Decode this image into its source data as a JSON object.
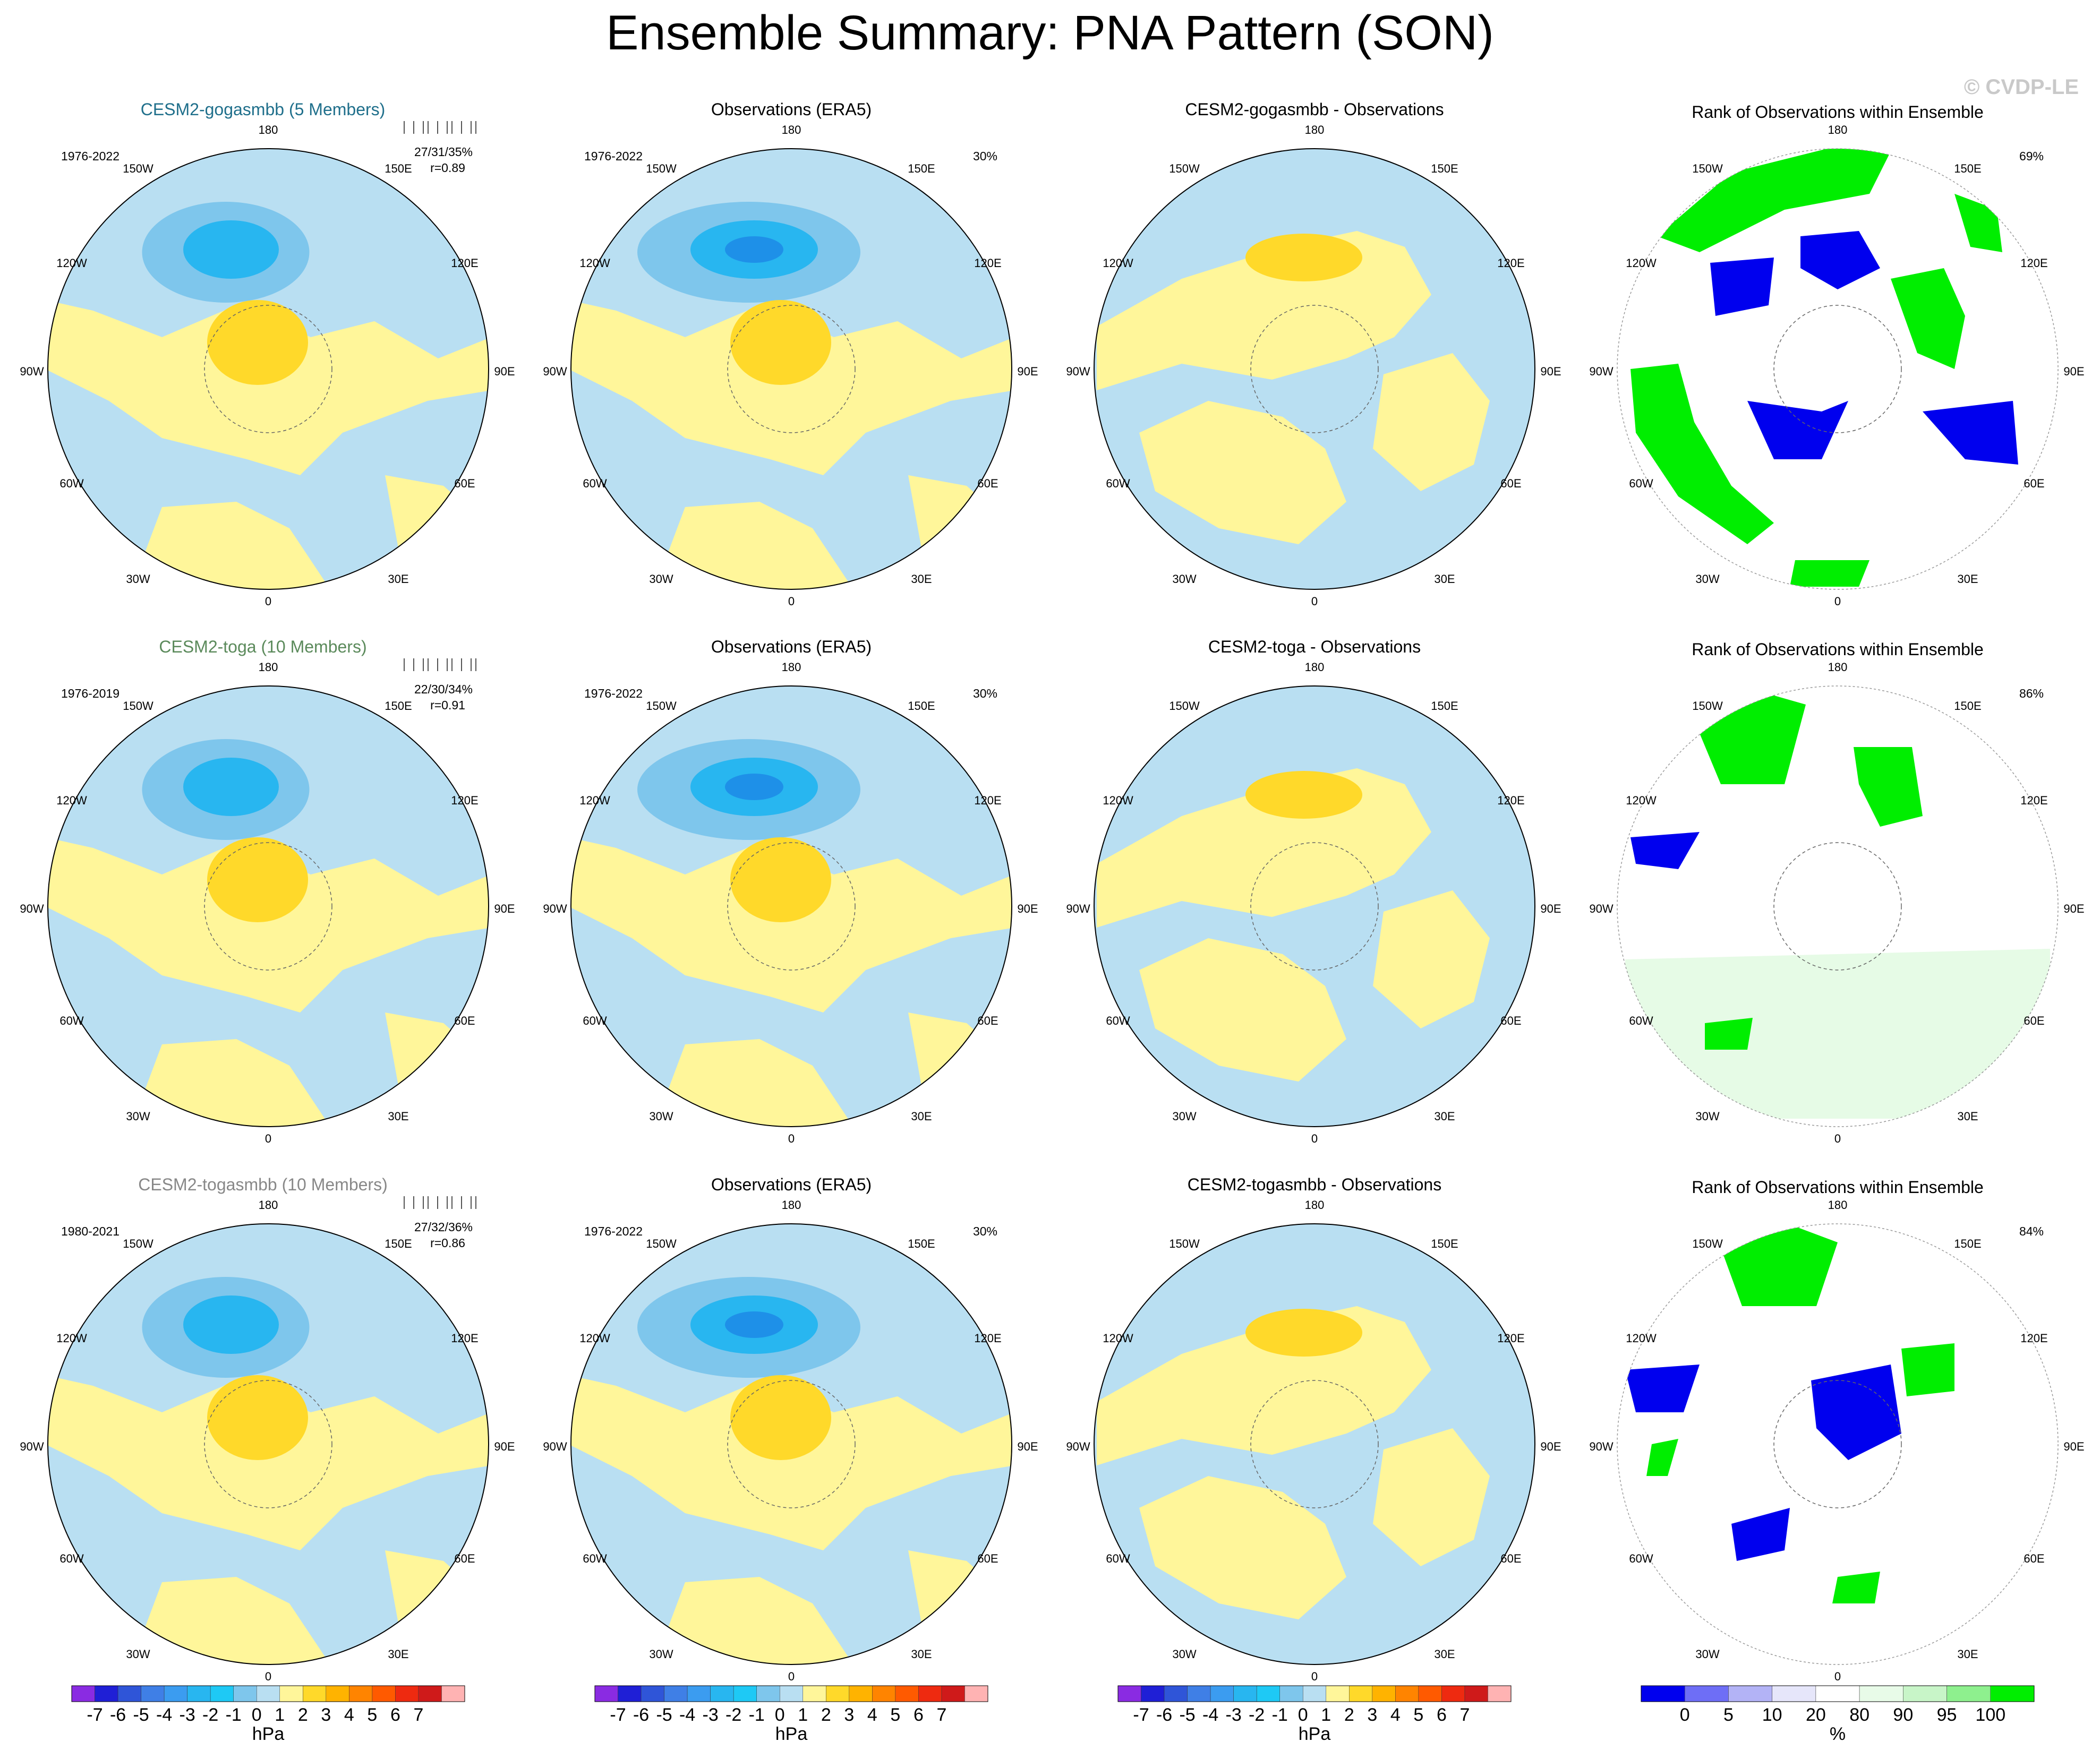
{
  "title": "Ensemble Summary: PNA Pattern (SON)",
  "watermark": "© CVDP-LE",
  "chart_data": {
    "type": "polar-map-panels",
    "variable_units": "hPa",
    "rank_units": "%",
    "lon_labels": [
      "180",
      "150E",
      "120E",
      "90E",
      "60E",
      "30E",
      "0",
      "30W",
      "60W",
      "90W",
      "120W",
      "150W"
    ],
    "rows": [
      {
        "model": "CESM2-gogasmbb (5 Members)",
        "model_color": "#1f6f8b",
        "diff_title": "CESM2-gogasmbb - Observations",
        "model_years": "1976-2022",
        "stats": "27/31/35%",
        "r": "r=0.89",
        "obs_title": "Observations (ERA5)",
        "obs_years": "1976-2022",
        "obs_pct": "30%",
        "rank_title": "Rank of Observations within Ensemble",
        "rank_pct": "69%"
      },
      {
        "model": "CESM2-toga (10 Members)",
        "model_color": "#5b8a5b",
        "diff_title": "CESM2-toga - Observations",
        "model_years": "1976-2019",
        "stats": "22/30/34%",
        "r": "r=0.91",
        "obs_title": "Observations (ERA5)",
        "obs_years": "1976-2022",
        "obs_pct": "30%",
        "rank_title": "Rank of Observations within Ensemble",
        "rank_pct": "86%"
      },
      {
        "model": "CESM2-togasmbb (10 Members)",
        "model_color": "#888888",
        "diff_title": "CESM2-togasmbb - Observations",
        "model_years": "1980-2021",
        "stats": "27/32/36%",
        "r": "r=0.86",
        "obs_title": "Observations (ERA5)",
        "obs_years": "1976-2022",
        "obs_pct": "30%",
        "rank_title": "Rank of Observations within Ensemble",
        "rank_pct": "84%"
      }
    ],
    "colorbar_hpa": {
      "label": "hPa",
      "ticks": [
        "-7",
        "-6",
        "-5",
        "-4",
        "-3",
        "-2",
        "-1",
        "0",
        "1",
        "2",
        "3",
        "4",
        "5",
        "6",
        "7"
      ],
      "colors": [
        "#8a2be2",
        "#1f1fd6",
        "#2f55d8",
        "#3f7fe6",
        "#3b9cf0",
        "#28b6f0",
        "#1ec9f5",
        "#7ec6ec",
        "#b9dff2",
        "#fff69a",
        "#ffd92a",
        "#ffb300",
        "#ff8400",
        "#ff5a00",
        "#ee2a10",
        "#cf1a1a",
        "#ffb3b3"
      ]
    },
    "colorbar_rank": {
      "label": "%",
      "ticks": [
        "0",
        "5",
        "10",
        "20",
        "80",
        "90",
        "95",
        "100"
      ],
      "colors": [
        "#0000ee",
        "#6e6ef6",
        "#b3b3f6",
        "#e6e6fa",
        "#ffffff",
        "#e8fbe8",
        "#c8f5c8",
        "#8ef08e",
        "#00ee00"
      ]
    }
  }
}
